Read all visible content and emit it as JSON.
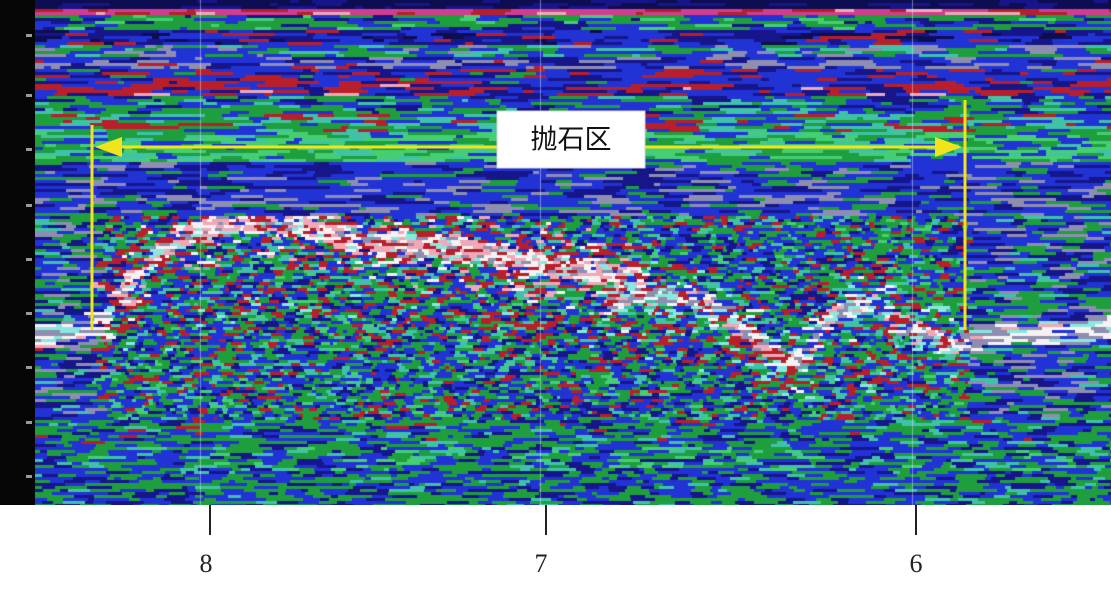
{
  "annotation": {
    "label": "抛石区",
    "line_color": "#f2e41c"
  },
  "markers": [
    {
      "label": "8"
    },
    {
      "label": "7"
    },
    {
      "label": "6"
    }
  ],
  "profile_palette": {
    "dblue": "#0d0d52",
    "navy": "#16168a",
    "blue": "#2233d6",
    "green": "#1f9e3e",
    "lgreen": "#46cf72",
    "teal": "#3fc2a8",
    "cyan": "#8ae8de",
    "red": "#b81f2a",
    "pink": "#f0a8b6",
    "white": "#f6f2f2",
    "gray": "#8e8eb0",
    "magenta": "#d63c8e"
  }
}
